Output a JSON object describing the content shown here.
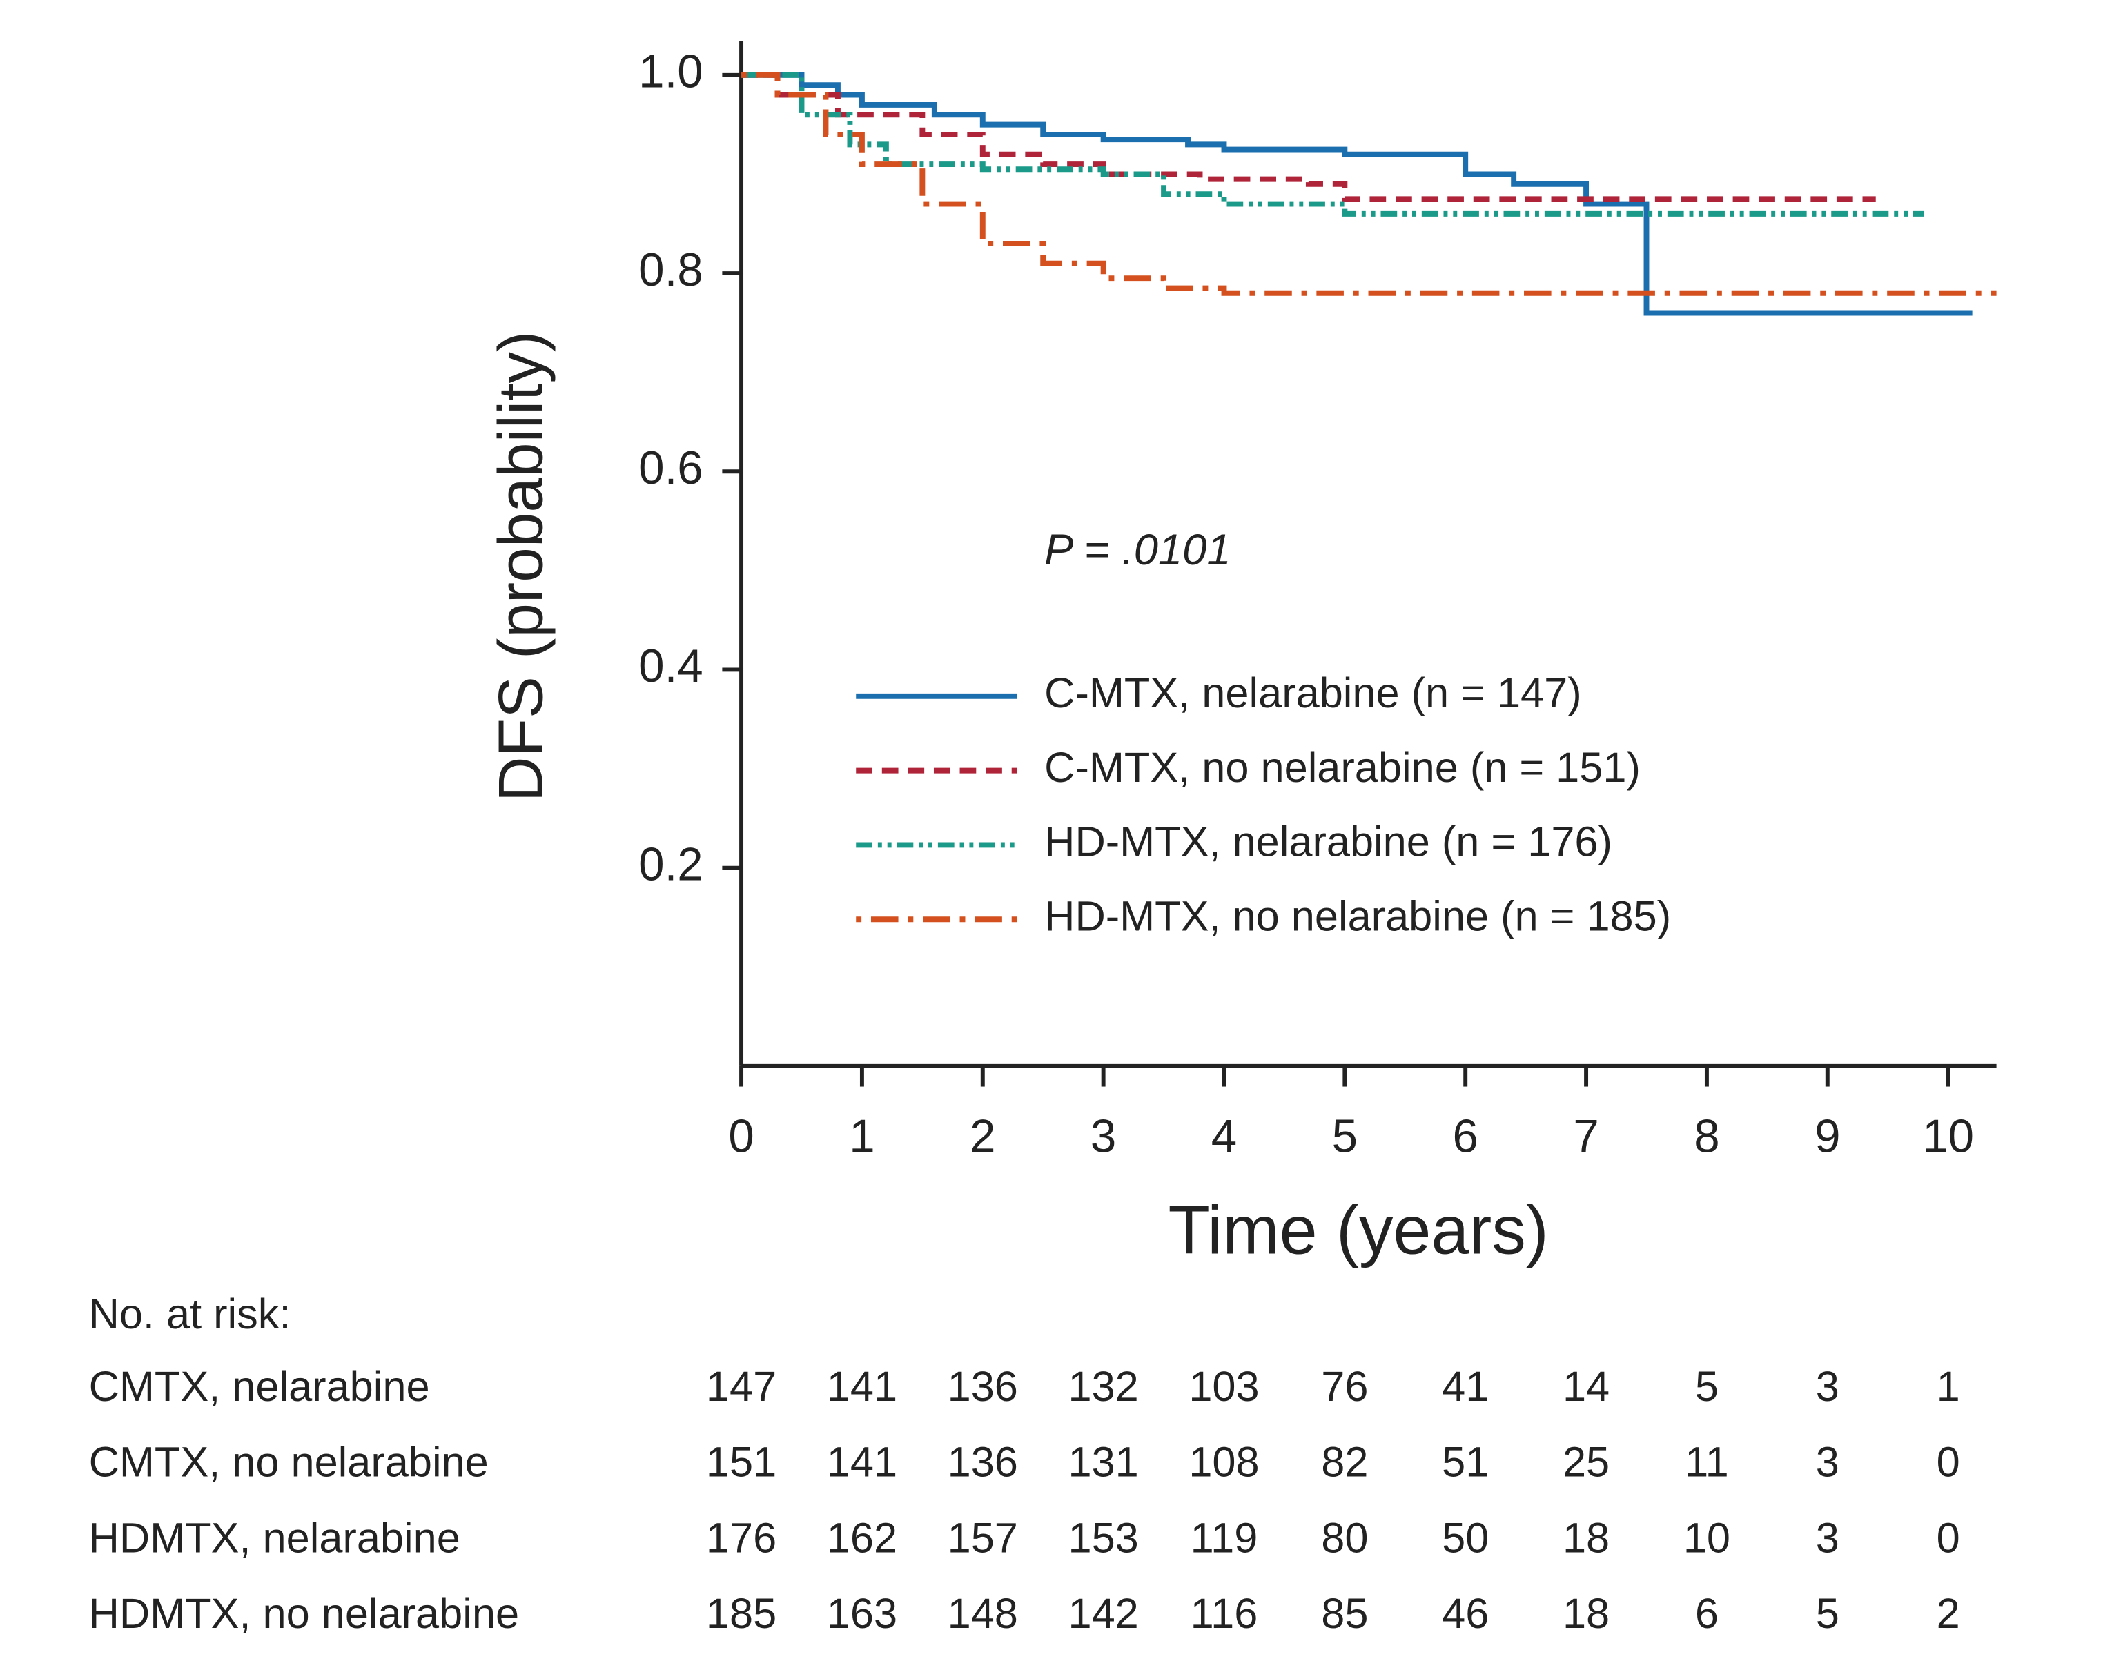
{
  "chart_data": {
    "type": "line",
    "step": true,
    "xlabel": "Time (years)",
    "ylabel": "DFS (probability)",
    "annotation": "P = .0101",
    "xlim": [
      0,
      10.4
    ],
    "ylim": [
      0,
      1
    ],
    "xticks": [
      0,
      1,
      2,
      3,
      4,
      5,
      6,
      7,
      8,
      9,
      10
    ],
    "yticks": [
      0.2,
      0.4,
      0.6,
      0.8,
      {
        "value": 1,
        "label": "1.0"
      }
    ],
    "series": [
      {
        "name": "C-MTX, nelarabine (n = 147)",
        "color": "#1b6fae",
        "dash": "solid",
        "x": [
          0,
          0.5,
          0.8,
          1.0,
          1.6,
          2.0,
          2.5,
          3.0,
          3.7,
          4.0,
          5.0,
          6.0,
          6.4,
          7.0,
          7.5,
          10.2
        ],
        "values": [
          1.0,
          0.99,
          0.98,
          0.97,
          0.96,
          0.95,
          0.94,
          0.935,
          0.93,
          0.925,
          0.92,
          0.9,
          0.89,
          0.87,
          0.76,
          0.76
        ]
      },
      {
        "name": "C-MTX, no nelarabine (n = 151)",
        "color": "#b0243a",
        "dash": "dashed",
        "x": [
          0,
          0.3,
          0.8,
          1.5,
          2.0,
          2.5,
          3.0,
          3.8,
          4.7,
          5.0,
          9.4
        ],
        "values": [
          1.0,
          0.98,
          0.96,
          0.94,
          0.92,
          0.91,
          0.9,
          0.895,
          0.89,
          0.875,
          0.875
        ]
      },
      {
        "name": "HD-MTX, nelarabine (n = 176)",
        "color": "#1b9a8a",
        "dash": "dashdotdot",
        "x": [
          0,
          0.5,
          0.9,
          1.2,
          2.0,
          3.0,
          3.5,
          4.0,
          5.0,
          9.8
        ],
        "values": [
          1.0,
          0.96,
          0.93,
          0.91,
          0.905,
          0.9,
          0.88,
          0.87,
          0.86,
          0.86
        ]
      },
      {
        "name": "HD-MTX, no nelarabine (n = 185)",
        "color": "#d4501e",
        "dash": "dashdot",
        "x": [
          0,
          0.3,
          0.7,
          1.0,
          1.5,
          2.0,
          2.5,
          3.0,
          3.5,
          4.0,
          10.4
        ],
        "values": [
          1.0,
          0.98,
          0.94,
          0.91,
          0.87,
          0.83,
          0.81,
          0.795,
          0.785,
          0.78,
          0.78
        ]
      }
    ],
    "risk_table": {
      "title": "No. at risk:",
      "rows": [
        {
          "label": "CMTX, nelarabine",
          "values": [
            147,
            141,
            136,
            132,
            103,
            76,
            41,
            14,
            5,
            3,
            1
          ]
        },
        {
          "label": "CMTX, no nelarabine",
          "values": [
            151,
            141,
            136,
            131,
            108,
            82,
            51,
            25,
            11,
            3,
            0
          ]
        },
        {
          "label": "HDMTX, nelarabine",
          "values": [
            176,
            162,
            157,
            153,
            119,
            80,
            50,
            18,
            10,
            3,
            0
          ]
        },
        {
          "label": "HDMTX, no nelarabine",
          "values": [
            185,
            163,
            148,
            142,
            116,
            85,
            46,
            18,
            6,
            5,
            2
          ]
        }
      ]
    }
  }
}
